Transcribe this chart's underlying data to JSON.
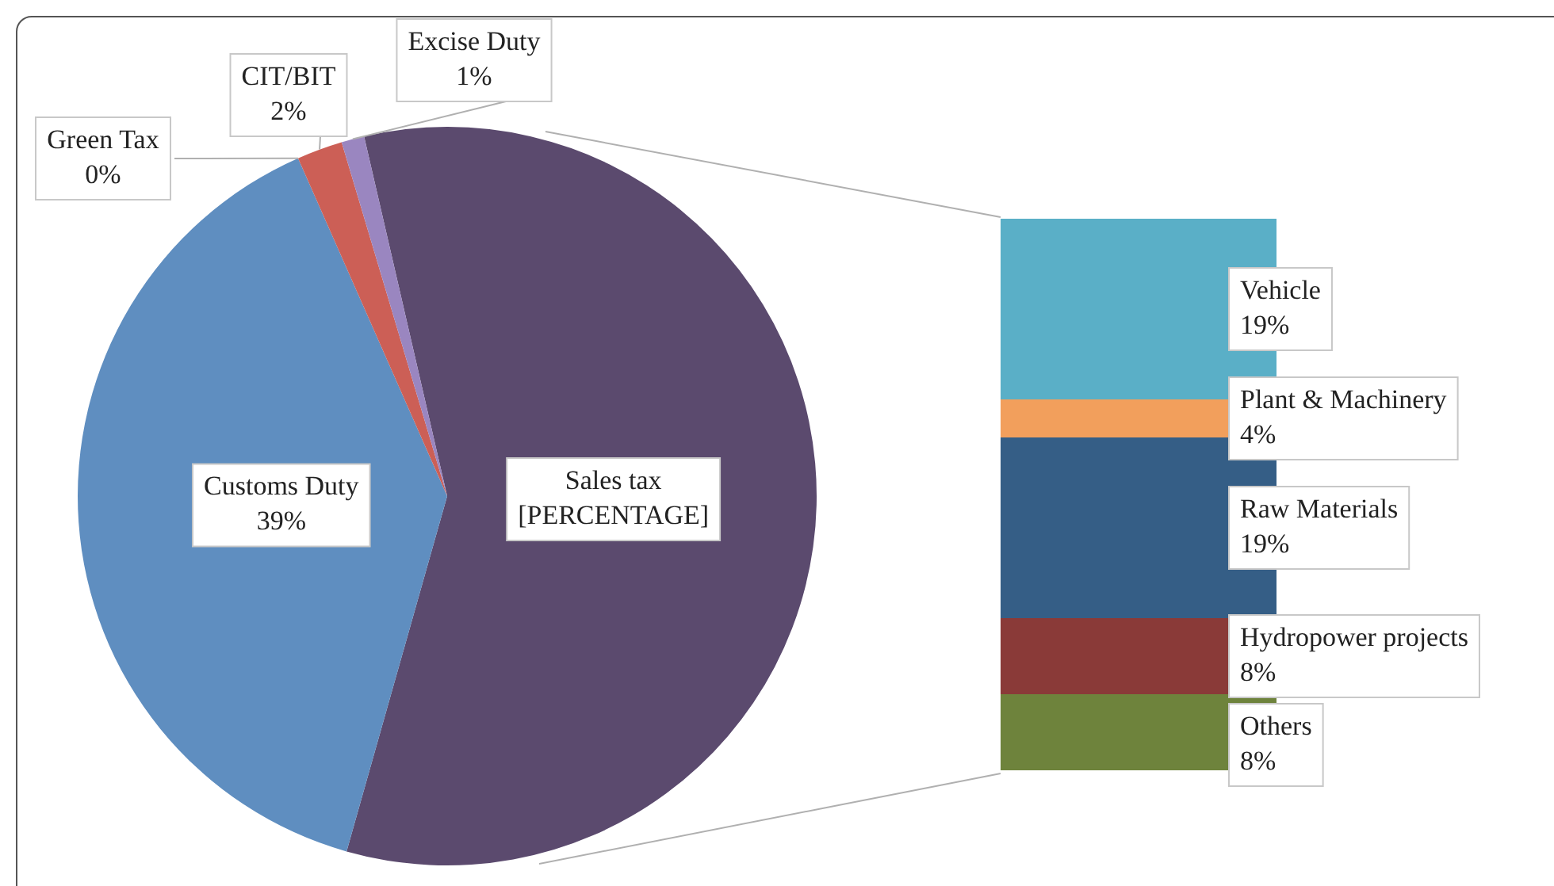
{
  "chart_data": [
    {
      "type": "pie",
      "categories": [
        "Sales tax",
        "Customs Duty",
        "Green Tax",
        "CIT/BIT",
        "Excise Duty"
      ],
      "values": [
        58,
        39,
        0,
        2,
        1
      ],
      "colors": [
        "#5b4a6e",
        "#5f8ec0",
        "#9bbb59",
        "#cc5f56",
        "#9a86c0"
      ],
      "value_labels": [
        "[PERCENTAGE]",
        "39%",
        "0%",
        "2%",
        "1%"
      ],
      "legend": false
    },
    {
      "type": "bar",
      "stacked": true,
      "categories": [
        null
      ],
      "tick_labels": false,
      "legend": false,
      "series": [
        {
          "name": "Others",
          "color": "#6e833c",
          "values": [
            8
          ],
          "value_labels": [
            "8%"
          ]
        },
        {
          "name": "Hydropower projects",
          "color": "#8a3a38",
          "values": [
            8
          ],
          "value_labels": [
            "8%"
          ]
        },
        {
          "name": "Raw Materials",
          "color": "#355e86",
          "values": [
            19
          ],
          "value_labels": [
            "19%"
          ]
        },
        {
          "name": "Plant & Machinery",
          "color": "#f29f5c",
          "values": [
            4
          ],
          "value_labels": [
            "4%"
          ]
        },
        {
          "name": "Vehicle",
          "color": "#5aafc7",
          "values": [
            19
          ],
          "value_labels": [
            "19%"
          ]
        }
      ]
    }
  ]
}
